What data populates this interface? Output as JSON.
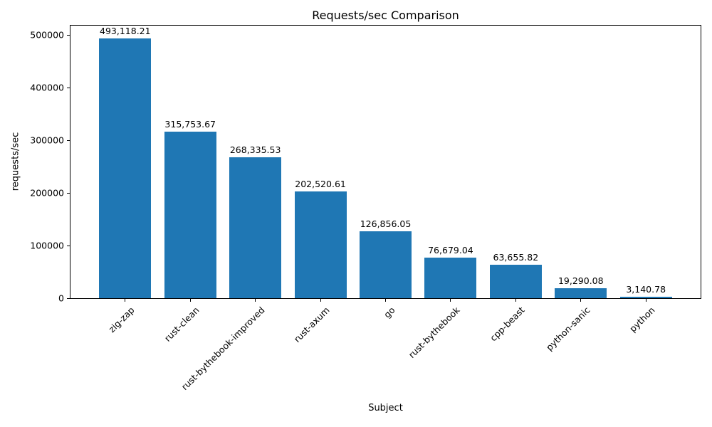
{
  "chart_data": {
    "type": "bar",
    "title": "Requests/sec Comparison",
    "xlabel": "Subject",
    "ylabel": "requests/sec",
    "categories": [
      "zig-zap",
      "rust-clean",
      "rust-bythebook-improved",
      "rust-axum",
      "go",
      "rust-bythebook",
      "cpp-beast",
      "python-sanic",
      "python"
    ],
    "values": [
      493118.21,
      315753.67,
      268335.53,
      202520.61,
      126856.05,
      76679.04,
      63655.82,
      19290.08,
      3140.78
    ],
    "value_labels": [
      "493,118.21",
      "315,753.67",
      "268,335.53",
      "202,520.61",
      "126,856.05",
      "76,679.04",
      "63,655.82",
      "19,290.08",
      "3,140.78"
    ],
    "ylim": [
      0,
      517774
    ],
    "yticks": [
      0,
      100000,
      200000,
      300000,
      400000,
      500000
    ],
    "ytick_labels": [
      "0",
      "100000",
      "200000",
      "300000",
      "400000",
      "500000"
    ],
    "bar_color": "#1f77b4",
    "grid": false,
    "legend": null
  }
}
